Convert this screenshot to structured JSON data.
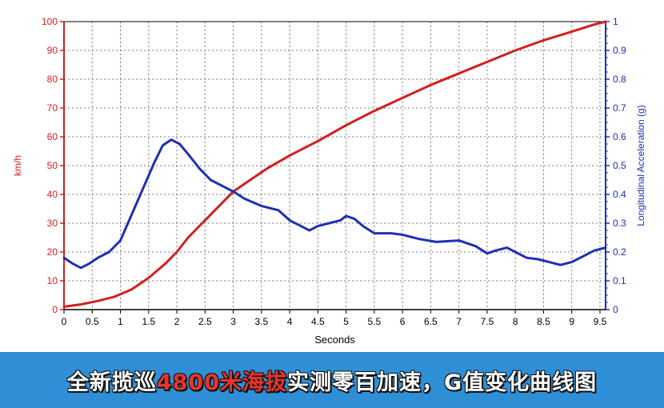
{
  "chart_data": {
    "type": "line",
    "xlabel": "Seconds",
    "ylabel_left": "km/h",
    "ylabel_right": "Longitudinal Acceleration (g)",
    "xlim": [
      0,
      9.6
    ],
    "ylim_left": [
      0,
      100
    ],
    "ylim_right": [
      0,
      1
    ],
    "x_ticks": [
      "0",
      "0.5",
      "1",
      "1.5",
      "2",
      "2.5",
      "3",
      "3.5",
      "4",
      "4.5",
      "5",
      "5.5",
      "6",
      "6.5",
      "7",
      "7.5",
      "8",
      "8.5",
      "9",
      "9.5"
    ],
    "y_left_ticks": [
      "0",
      "10",
      "20",
      "30",
      "40",
      "50",
      "60",
      "70",
      "80",
      "90",
      "100"
    ],
    "y_right_ticks": [
      "0",
      "0.1",
      "0.2",
      "0.3",
      "0.4",
      "0.5",
      "0.6",
      "0.7",
      "0.8",
      "0.9",
      "1"
    ],
    "grid": true,
    "series": [
      {
        "axis": "left",
        "color": "#d21f1f",
        "points": [
          [
            0,
            1
          ],
          [
            0.3,
            1.8
          ],
          [
            0.6,
            3
          ],
          [
            0.9,
            4.5
          ],
          [
            1.2,
            7
          ],
          [
            1.5,
            11
          ],
          [
            1.8,
            16
          ],
          [
            2.0,
            20
          ],
          [
            2.2,
            25
          ],
          [
            2.5,
            31
          ],
          [
            2.8,
            37
          ],
          [
            3.0,
            41
          ],
          [
            3.3,
            45
          ],
          [
            3.6,
            49
          ],
          [
            4.0,
            53.5
          ],
          [
            4.5,
            58.5
          ],
          [
            5.0,
            64
          ],
          [
            5.5,
            69
          ],
          [
            6.0,
            73.5
          ],
          [
            6.5,
            78
          ],
          [
            7.0,
            82
          ],
          [
            7.5,
            86
          ],
          [
            8.0,
            90
          ],
          [
            8.5,
            93.5
          ],
          [
            9.0,
            96.5
          ],
          [
            9.4,
            99
          ],
          [
            9.6,
            100
          ]
        ]
      },
      {
        "axis": "right",
        "color": "#1f2fb4",
        "points": [
          [
            0,
            0.18
          ],
          [
            0.15,
            0.16
          ],
          [
            0.3,
            0.145
          ],
          [
            0.45,
            0.16
          ],
          [
            0.6,
            0.18
          ],
          [
            0.8,
            0.2
          ],
          [
            1.0,
            0.24
          ],
          [
            1.2,
            0.33
          ],
          [
            1.4,
            0.42
          ],
          [
            1.6,
            0.51
          ],
          [
            1.75,
            0.57
          ],
          [
            1.9,
            0.59
          ],
          [
            2.05,
            0.575
          ],
          [
            2.2,
            0.54
          ],
          [
            2.4,
            0.49
          ],
          [
            2.6,
            0.45
          ],
          [
            2.8,
            0.43
          ],
          [
            3.0,
            0.41
          ],
          [
            3.2,
            0.385
          ],
          [
            3.5,
            0.36
          ],
          [
            3.8,
            0.345
          ],
          [
            4.0,
            0.31
          ],
          [
            4.2,
            0.29
          ],
          [
            4.35,
            0.275
          ],
          [
            4.5,
            0.29
          ],
          [
            4.7,
            0.3
          ],
          [
            4.9,
            0.31
          ],
          [
            5.0,
            0.325
          ],
          [
            5.15,
            0.315
          ],
          [
            5.3,
            0.29
          ],
          [
            5.5,
            0.265
          ],
          [
            5.8,
            0.265
          ],
          [
            6.0,
            0.26
          ],
          [
            6.3,
            0.245
          ],
          [
            6.6,
            0.235
          ],
          [
            7.0,
            0.24
          ],
          [
            7.3,
            0.22
          ],
          [
            7.5,
            0.195
          ],
          [
            7.65,
            0.205
          ],
          [
            7.85,
            0.215
          ],
          [
            8.0,
            0.2
          ],
          [
            8.2,
            0.18
          ],
          [
            8.4,
            0.175
          ],
          [
            8.6,
            0.165
          ],
          [
            8.8,
            0.155
          ],
          [
            9.0,
            0.165
          ],
          [
            9.2,
            0.185
          ],
          [
            9.4,
            0.205
          ],
          [
            9.6,
            0.215
          ]
        ]
      }
    ]
  },
  "banner": {
    "prefix": "全新揽巡",
    "highlight": "4800米海拔",
    "suffix": "实测零百加速，G值变化曲线图",
    "bg_color": "#2f8fd6",
    "highlight_color": "#e8342c"
  }
}
